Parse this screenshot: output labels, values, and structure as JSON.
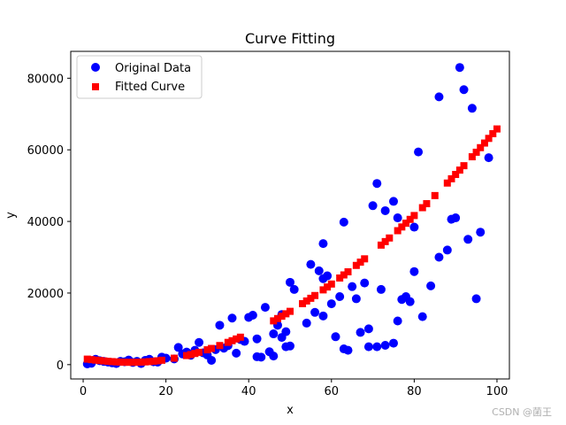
{
  "chart_data": {
    "type": "scatter",
    "title": "Curve Fitting",
    "xlabel": "x",
    "ylabel": "y",
    "xlim": [
      -3,
      103
    ],
    "ylim": [
      -4000,
      87500
    ],
    "xticks": [
      0,
      20,
      40,
      60,
      80,
      100
    ],
    "yticks": [
      0,
      20000,
      40000,
      60000,
      80000
    ],
    "grid": false,
    "legend_position": "top-left",
    "series": [
      {
        "name": "Original Data",
        "marker": "circle",
        "color": "#0000ff",
        "points": [
          [
            1,
            200
          ],
          [
            2,
            400
          ],
          [
            3,
            1500
          ],
          [
            4,
            1100
          ],
          [
            5,
            900
          ],
          [
            6,
            700
          ],
          [
            7,
            500
          ],
          [
            8,
            300
          ],
          [
            9,
            900
          ],
          [
            10,
            800
          ],
          [
            11,
            1300
          ],
          [
            12,
            600
          ],
          [
            13,
            900
          ],
          [
            14,
            300
          ],
          [
            15,
            1200
          ],
          [
            16,
            1500
          ],
          [
            17,
            800
          ],
          [
            18,
            700
          ],
          [
            19,
            2100
          ],
          [
            20,
            1800
          ],
          [
            22,
            1600
          ],
          [
            23,
            4800
          ],
          [
            24,
            3000
          ],
          [
            25,
            3500
          ],
          [
            26,
            2600
          ],
          [
            27,
            4000
          ],
          [
            28,
            6200
          ],
          [
            29,
            3300
          ],
          [
            30,
            2700
          ],
          [
            31,
            1200
          ],
          [
            32,
            4200
          ],
          [
            33,
            11000
          ],
          [
            34,
            4600
          ],
          [
            35,
            5300
          ],
          [
            36,
            13000
          ],
          [
            37,
            3200
          ],
          [
            38,
            7000
          ],
          [
            39,
            6500
          ],
          [
            40,
            13200
          ],
          [
            41,
            13800
          ],
          [
            42,
            7200
          ],
          [
            42,
            2200
          ],
          [
            43,
            2100
          ],
          [
            44,
            16000
          ],
          [
            45,
            3600
          ],
          [
            46,
            8600
          ],
          [
            46,
            2400
          ],
          [
            47,
            11000
          ],
          [
            48,
            14000
          ],
          [
            48,
            7600
          ],
          [
            49,
            9200
          ],
          [
            49,
            5000
          ],
          [
            50,
            23000
          ],
          [
            50,
            5200
          ],
          [
            51,
            21000
          ],
          [
            54,
            11600
          ],
          [
            55,
            28000
          ],
          [
            56,
            14600
          ],
          [
            57,
            26200
          ],
          [
            58,
            33800
          ],
          [
            58,
            24000
          ],
          [
            59,
            24800
          ],
          [
            58,
            13600
          ],
          [
            60,
            17000
          ],
          [
            61,
            7800
          ],
          [
            62,
            19000
          ],
          [
            63,
            4400
          ],
          [
            63,
            39800
          ],
          [
            64,
            4000
          ],
          [
            65,
            21800
          ],
          [
            66,
            18400
          ],
          [
            67,
            9000
          ],
          [
            68,
            22800
          ],
          [
            69,
            10000
          ],
          [
            69,
            5000
          ],
          [
            70,
            44400
          ],
          [
            71,
            50600
          ],
          [
            71,
            5000
          ],
          [
            72,
            21000
          ],
          [
            73,
            43000
          ],
          [
            73,
            5400
          ],
          [
            75,
            45600
          ],
          [
            75,
            6000
          ],
          [
            76,
            41000
          ],
          [
            76,
            12200
          ],
          [
            77,
            18200
          ],
          [
            78,
            19000
          ],
          [
            79,
            17600
          ],
          [
            80,
            38400
          ],
          [
            80,
            26000
          ],
          [
            81,
            59400
          ],
          [
            82,
            13400
          ],
          [
            84,
            22000
          ],
          [
            86,
            74800
          ],
          [
            86,
            30000
          ],
          [
            88,
            32000
          ],
          [
            89,
            40600
          ],
          [
            90,
            41000
          ],
          [
            91,
            83000
          ],
          [
            92,
            76800
          ],
          [
            93,
            35000
          ],
          [
            94,
            71600
          ],
          [
            95,
            18400
          ],
          [
            96,
            37000
          ],
          [
            98,
            57800
          ]
        ]
      },
      {
        "name": "Fitted Curve",
        "marker": "square",
        "color": "#ff0000",
        "points": [
          [
            1,
            1538
          ],
          [
            2,
            1400
          ],
          [
            3,
            1269
          ],
          [
            4,
            1146
          ],
          [
            5,
            1033
          ],
          [
            6,
            932
          ],
          [
            7,
            845
          ],
          [
            8,
            773
          ],
          [
            9,
            717
          ],
          [
            10,
            678
          ],
          [
            11,
            657
          ],
          [
            12,
            655
          ],
          [
            13,
            673
          ],
          [
            14,
            710
          ],
          [
            15,
            768
          ],
          [
            16,
            848
          ],
          [
            17,
            950
          ],
          [
            18,
            1075
          ],
          [
            19,
            1223
          ],
          [
            22,
            1796
          ],
          [
            25,
            2534
          ],
          [
            26,
            2816
          ],
          [
            27,
            3118
          ],
          [
            28,
            3440
          ],
          [
            30,
            4142
          ],
          [
            31,
            4521
          ],
          [
            33,
            5335
          ],
          [
            35,
            6217
          ],
          [
            36,
            6684
          ],
          [
            37,
            7167
          ],
          [
            38,
            7666
          ],
          [
            46,
            12225
          ],
          [
            47,
            12869
          ],
          [
            48,
            13527
          ],
          [
            49,
            14200
          ],
          [
            50,
            14887
          ],
          [
            53,
            17035
          ],
          [
            54,
            17778
          ],
          [
            55,
            18534
          ],
          [
            56,
            19304
          ],
          [
            58,
            20882
          ],
          [
            59,
            21690
          ],
          [
            60,
            22512
          ],
          [
            62,
            24194
          ],
          [
            63,
            25054
          ],
          [
            64,
            25927
          ],
          [
            66,
            27713
          ],
          [
            67,
            28625
          ],
          [
            68,
            29550
          ],
          [
            72,
            33381
          ],
          [
            73,
            34370
          ],
          [
            74,
            35372
          ],
          [
            76,
            37414
          ],
          [
            77,
            38454
          ],
          [
            78,
            39506
          ],
          [
            79,
            40571
          ],
          [
            80,
            41648
          ],
          [
            82,
            43840
          ],
          [
            83,
            44954
          ],
          [
            85,
            47222
          ],
          [
            88,
            50717
          ],
          [
            89,
            51910
          ],
          [
            90,
            53116
          ],
          [
            91,
            54333
          ],
          [
            92,
            55564
          ],
          [
            94,
            58059
          ],
          [
            95,
            59324
          ],
          [
            96,
            60600
          ],
          [
            97,
            61890
          ],
          [
            98,
            63191
          ],
          [
            99,
            64504
          ],
          [
            100,
            65830
          ]
        ]
      }
    ]
  },
  "watermark": "CSDN @菌王"
}
